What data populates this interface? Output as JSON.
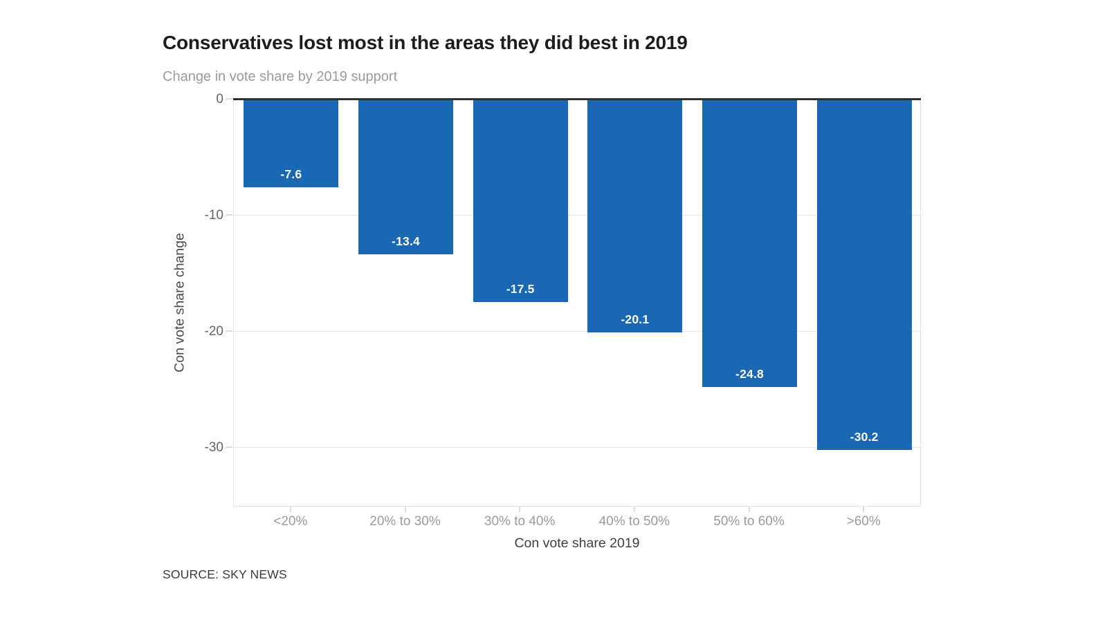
{
  "header": {
    "title": "Conservatives lost most in the areas they did best in 2019",
    "subtitle": "Change in vote share by 2019 support"
  },
  "chart_data": {
    "type": "bar",
    "title": "Conservatives lost most in the areas they did best in 2019",
    "subtitle": "Change in vote share by 2019 support",
    "categories": [
      "<20%",
      "20% to 30%",
      "30% to 40%",
      "40% to 50%",
      "50% to 60%",
      ">60%"
    ],
    "values": [
      -7.6,
      -13.4,
      -17.5,
      -20.1,
      -24.8,
      -30.2
    ],
    "bar_labels": [
      "-7.6",
      "-13.4",
      "-17.5",
      "-20.1",
      "-24.8",
      "-30.2"
    ],
    "xlabel": "Con vote share 2019",
    "ylabel": "Con vote share change",
    "yticks": [
      0,
      -10,
      -20,
      -30
    ],
    "ytick_labels": [
      "0",
      "-10",
      "-20",
      "-30"
    ],
    "ylim": [
      -35.1,
      0
    ],
    "grid": true,
    "legend_position": "none",
    "orientation": "vertical",
    "colors": {
      "bar": "#1a67b3",
      "zero_line": "#2f2f2f",
      "gridline": "#e9e9e9",
      "bar_label_text": "#ffffff"
    }
  },
  "footer": {
    "source": "SOURCE: SKY NEWS"
  }
}
